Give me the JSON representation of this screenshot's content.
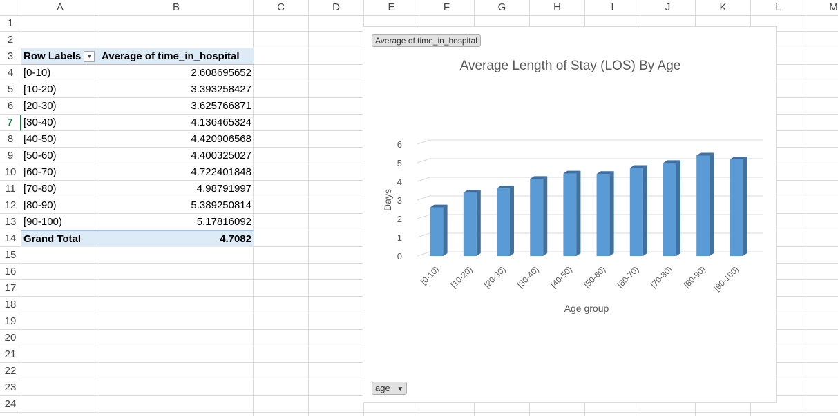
{
  "columns": [
    "A",
    "B",
    "C",
    "D",
    "E",
    "F",
    "G",
    "H",
    "I",
    "J",
    "K",
    "L",
    "M"
  ],
  "rows": [
    "1",
    "2",
    "3",
    "4",
    "5",
    "6",
    "7",
    "8",
    "9",
    "10",
    "11",
    "12",
    "13",
    "14",
    "15",
    "16",
    "17",
    "18",
    "19",
    "20",
    "21",
    "22",
    "23",
    "24"
  ],
  "selected_row": "7",
  "pivot": {
    "header_label": "Row Labels",
    "header_value": "Average of time_in_hospital",
    "items": [
      {
        "label": "[0-10)",
        "value": "2.608695652"
      },
      {
        "label": "[10-20)",
        "value": "3.393258427"
      },
      {
        "label": "[20-30)",
        "value": "3.625766871"
      },
      {
        "label": "[30-40)",
        "value": "4.136465324"
      },
      {
        "label": "[40-50)",
        "value": "4.420906568"
      },
      {
        "label": "[50-60)",
        "value": "4.400325027"
      },
      {
        "label": "[60-70)",
        "value": "4.722401848"
      },
      {
        "label": "[70-80)",
        "value": "4.98791997"
      },
      {
        "label": "[80-90)",
        "value": "5.389250814"
      },
      {
        "label": "[90-100)",
        "value": "5.17816092"
      }
    ],
    "total_label": "Grand Total",
    "total_value": "4.7082"
  },
  "chart": {
    "value_field_button": "Average of time_in_hospital",
    "axis_field_button": "age",
    "bar_color": "#5b9bd5"
  },
  "chart_data": {
    "type": "bar",
    "title": "Average Length of Stay (LOS) By Age",
    "xlabel": "Age group",
    "ylabel": "Days",
    "categories": [
      "[0-10)",
      "[10-20)",
      "[20-30)",
      "[30-40)",
      "[40-50)",
      "[50-60)",
      "[60-70)",
      "[70-80)",
      "[80-90)",
      "[90-100)"
    ],
    "values": [
      2.608695652,
      3.393258427,
      3.625766871,
      4.136465324,
      4.420906568,
      4.400325027,
      4.722401848,
      4.98791997,
      5.389250814,
      5.17816092
    ],
    "yticks": [
      "0",
      "1",
      "2",
      "3",
      "4",
      "5",
      "6"
    ],
    "ylim": [
      0,
      6
    ],
    "grid": true,
    "legend": "none"
  }
}
